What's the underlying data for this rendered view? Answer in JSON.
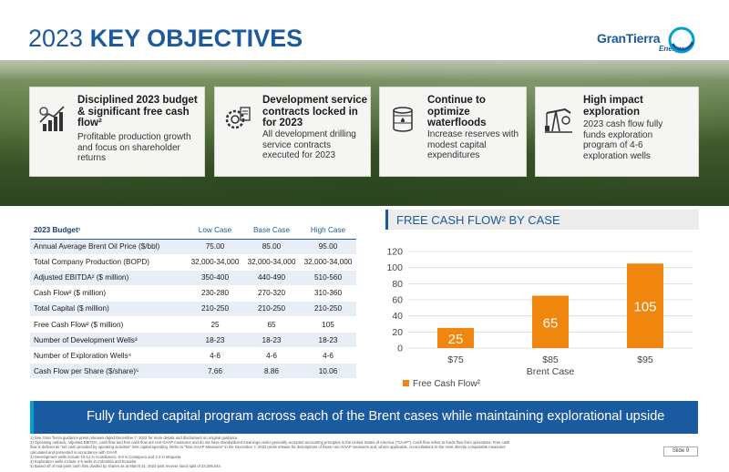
{
  "title": {
    "year": "2023",
    "text": "KEY OBJECTIVES"
  },
  "logo": {
    "name": "GranTierra",
    "sub": "Energy"
  },
  "cards": [
    {
      "icon": "chart-growth-icon",
      "head": "Disciplined 2023 budget & significant free cash flow²",
      "body": "Profitable production growth and focus on shareholder returns"
    },
    {
      "icon": "gear-money-icon",
      "head": "Development service contracts locked in for 2023",
      "body": "All development drilling service contracts executed for 2023"
    },
    {
      "icon": "oil-barrel-icon",
      "head": "Continue to optimize waterfloods",
      "body": "Increase reserves with modest capital expenditures"
    },
    {
      "icon": "pump-jack-icon",
      "head": "High impact exploration",
      "body": "2023 cash flow fully funds exploration program of 4-6 exploration wells"
    }
  ],
  "budget": {
    "header": {
      "label": "2023 Budget¹",
      "low": "Low Case",
      "base": "Base Case",
      "high": "High Case"
    },
    "rows": [
      {
        "label": "Annual Average Brent Oil Price ($/bbl)",
        "low": "75.00",
        "base": "85.00",
        "high": "95.00"
      },
      {
        "label": "Total Company Production (BOPD)",
        "low": "32,000-34,000",
        "base": "32,000-34,000",
        "high": "32,000-34,000"
      },
      {
        "label": "Adjusted EBITDA² ($ million)",
        "low": "350-400",
        "base": "440-490",
        "high": "510-560"
      },
      {
        "label": "Cash Flow² ($ million)",
        "low": "230-280",
        "base": "270-320",
        "high": "310-360"
      },
      {
        "label": "Total Capital ($ million)",
        "low": "210-250",
        "base": "210-250",
        "high": "210-250"
      },
      {
        "label": "Free Cash Flow² ($ million)",
        "low": "25",
        "base": "65",
        "high": "105"
      },
      {
        "label": "Number of Development Wells³",
        "low": "18-23",
        "base": "18-23",
        "high": "18-23"
      },
      {
        "label": "Number of Exploration Wells⁴",
        "low": "4-6",
        "base": "4-6",
        "high": "4-6"
      },
      {
        "label": "Cash Flow per Share ($/share)⁵",
        "low": "7.66",
        "base": "8.86",
        "high": "10.06"
      }
    ]
  },
  "chart_title": "FREE CASH FLOW² BY CASE",
  "chart_data": {
    "type": "bar",
    "categories": [
      "$75",
      "$85",
      "$95"
    ],
    "series": [
      {
        "name": "Free Cash Flow²",
        "values": [
          25,
          65,
          105
        ],
        "color": "#f0860e"
      }
    ],
    "xlabel": "Brent Case",
    "ylabel": "",
    "ylim": [
      0,
      120
    ],
    "yticks": [
      "0",
      "20",
      "40",
      "60",
      "80",
      "100",
      "120"
    ],
    "grid": true,
    "legend": "bottom-left"
  },
  "footer": "Fully funded capital program across each of the Brent cases while maintaining explorational upside",
  "notes": [
    "1)    See Gran Tierra guidance press releases dated December 7, 2022 for more details and disclaimers on original guidance.",
    "2)    Operating netback, Adjusted EBITDA, cash flow and free cash flow are non-GAAP measures and do not have standardized meanings under generally accepted accounting principles in the United States of America (\"GAAP\"). Cash flow refers to funds flow from operations. Free cash",
    "       flow is defined as \"net cash provided by operating activities\" less capital spending. Refer to \"Non-GAAP Measures\" in the December 7, 2022 press release for descriptions of these non-GAAP measures and, where applicable, reconciliations to the most directly comparable measures",
    "       calculated and presented in accordance with GAAP.",
    "3)    Development wells include 10-12 in Acordionero, 6-8 in Costayaco and 2-3 in Moqueta",
    "4)    Exploration wells include 4-6 wells in Colombia and Ecuador",
    "5)    Based off of mid-point cash flow divided by shares as at March 31, 2023 post reverse stock split of 33,306,044"
  ],
  "slide": "Slide 9",
  "colors": {
    "brand": "#1d5a9c",
    "bar": "#f0860e",
    "footer": "#1a5aa0"
  }
}
